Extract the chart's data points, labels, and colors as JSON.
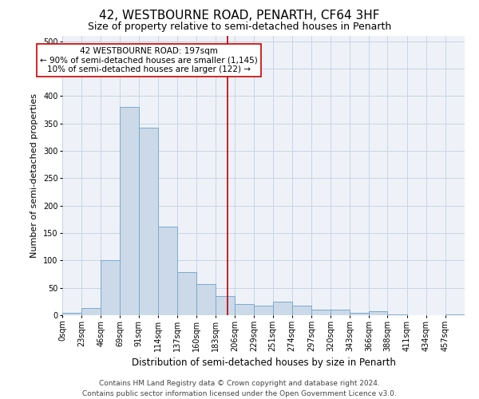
{
  "title": "42, WESTBOURNE ROAD, PENARTH, CF64 3HF",
  "subtitle": "Size of property relative to semi-detached houses in Penarth",
  "xlabel": "Distribution of semi-detached houses by size in Penarth",
  "ylabel": "Number of semi-detached properties",
  "bin_labels": [
    "0sqm",
    "23sqm",
    "46sqm",
    "69sqm",
    "91sqm",
    "114sqm",
    "137sqm",
    "160sqm",
    "183sqm",
    "206sqm",
    "229sqm",
    "251sqm",
    "274sqm",
    "297sqm",
    "320sqm",
    "343sqm",
    "366sqm",
    "388sqm",
    "411sqm",
    "434sqm",
    "457sqm"
  ],
  "bin_edges": [
    0,
    23,
    46,
    69,
    91,
    114,
    137,
    160,
    183,
    206,
    229,
    251,
    274,
    297,
    320,
    343,
    366,
    388,
    411,
    434,
    457,
    480
  ],
  "bar_heights": [
    4,
    13,
    100,
    380,
    343,
    162,
    78,
    57,
    35,
    20,
    17,
    25,
    18,
    10,
    10,
    5,
    7,
    2,
    0,
    0,
    2
  ],
  "bar_color": "#ccd9e8",
  "bar_edge_color": "#7aaace",
  "bar_linewidth": 0.7,
  "grid_color": "#c8d4e4",
  "vline_x": 197,
  "vline_color": "#bb0000",
  "vline_linewidth": 1.2,
  "annotation_text": "42 WESTBOURNE ROAD: 197sqm\n← 90% of semi-detached houses are smaller (1,145)\n10% of semi-detached houses are larger (122) →",
  "annotation_box_color": "#ffffff",
  "annotation_box_edgecolor": "#cc0000",
  "ylim": [
    0,
    510
  ],
  "yticks": [
    0,
    50,
    100,
    150,
    200,
    250,
    300,
    350,
    400,
    450,
    500
  ],
  "footer_text": "Contains HM Land Registry data © Crown copyright and database right 2024.\nContains public sector information licensed under the Open Government Licence v3.0.",
  "title_fontsize": 11,
  "subtitle_fontsize": 9,
  "xlabel_fontsize": 8.5,
  "ylabel_fontsize": 8,
  "tick_fontsize": 7,
  "annotation_fontsize": 7.5,
  "footer_fontsize": 6.5
}
